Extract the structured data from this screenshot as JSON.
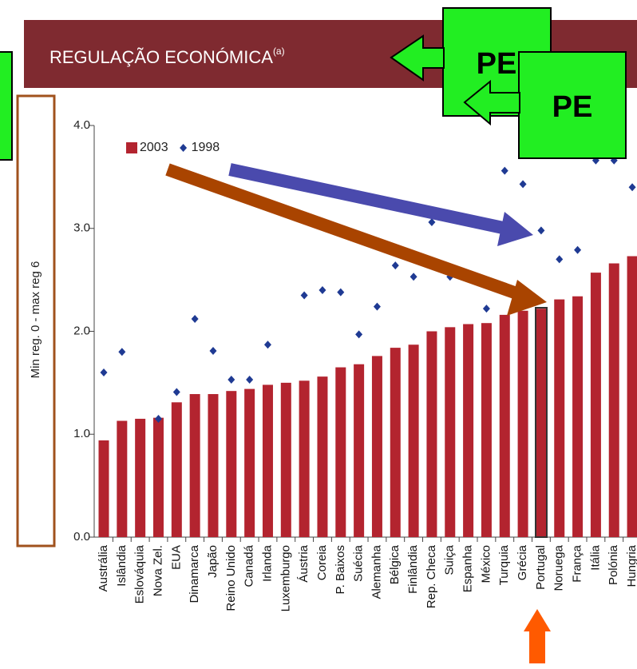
{
  "chart_data": {
    "type": "bar",
    "title": "REGULAÇÃO ECONÓMICA",
    "title_superscript": "(a)",
    "y_label": "Min reg. 0 - max reg 6",
    "categories": [
      "Austrália",
      "Islândia",
      "Eslováquia",
      "Nova Zel.",
      "EUA",
      "Dinamarca",
      "Japão",
      "Reino Unido",
      "Canadá",
      "Irlanda",
      "Luxemburgo",
      "Áustria",
      "Coreia",
      "P. Baixos",
      "Suécia",
      "Alemanha",
      "Bélgica",
      "Finlândia",
      "Rep. Checa",
      "Suiça",
      "Espanha",
      "México",
      "Turquia",
      "Grécia",
      "Portugal",
      "Noruega",
      "França",
      "Itália",
      "Polónia",
      "Hungria"
    ],
    "series": [
      {
        "name": "2003",
        "type": "bar",
        "color": "#b3242f",
        "values": [
          0.94,
          1.13,
          1.15,
          1.16,
          1.31,
          1.39,
          1.39,
          1.42,
          1.44,
          1.48,
          1.5,
          1.52,
          1.56,
          1.65,
          1.68,
          1.76,
          1.84,
          1.87,
          2.0,
          2.04,
          2.07,
          2.08,
          2.16,
          2.2,
          2.22,
          2.31,
          2.34,
          2.57,
          2.66,
          2.73
        ]
      },
      {
        "name": "1998",
        "type": "scatter",
        "color": "#1f3a93",
        "values": [
          1.6,
          1.8,
          null,
          1.15,
          1.41,
          2.12,
          1.81,
          1.53,
          1.53,
          1.87,
          null,
          2.35,
          2.4,
          2.38,
          1.97,
          2.24,
          2.64,
          2.53,
          3.06,
          2.53,
          null,
          2.22,
          3.56,
          3.43,
          2.98,
          2.7,
          2.79,
          3.66,
          3.66,
          3.4
        ]
      }
    ],
    "ylim": [
      0,
      4
    ],
    "yticks": [
      {
        "value": 0,
        "label": "0.0"
      },
      {
        "value": 1,
        "label": "1.0"
      },
      {
        "value": 2,
        "label": "2.0"
      },
      {
        "value": 3,
        "label": "3.0"
      },
      {
        "value": 4,
        "label": "4.0"
      }
    ],
    "legend": "top-left",
    "annotations": [
      "PE",
      "PE"
    ]
  }
}
